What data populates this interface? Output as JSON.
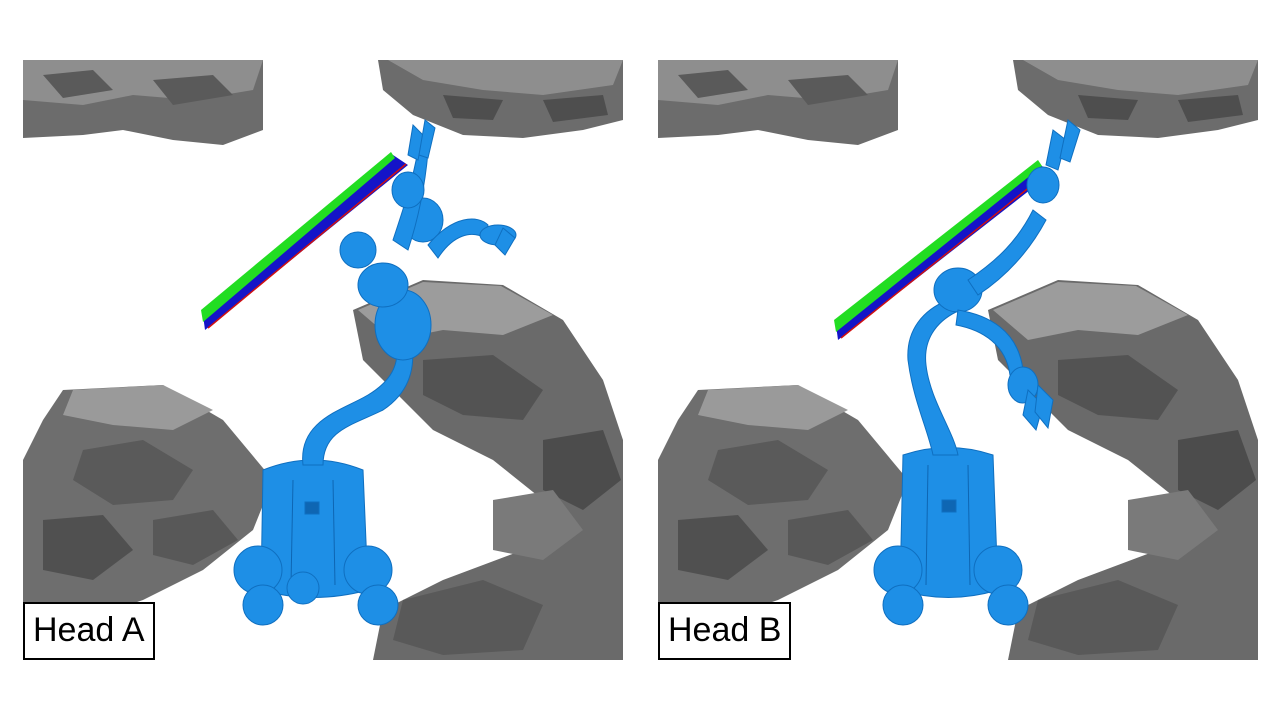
{
  "panels": [
    {
      "label": "Head A"
    },
    {
      "label": "Head B"
    }
  ],
  "colors": {
    "robot": "#1e8fe6",
    "rock_light": "#8c8c8c",
    "rock_dark": "#4a4a4a",
    "plate_top": "#22dd22",
    "plate_edge": "#1414c8",
    "accent_red": "#d01010"
  }
}
